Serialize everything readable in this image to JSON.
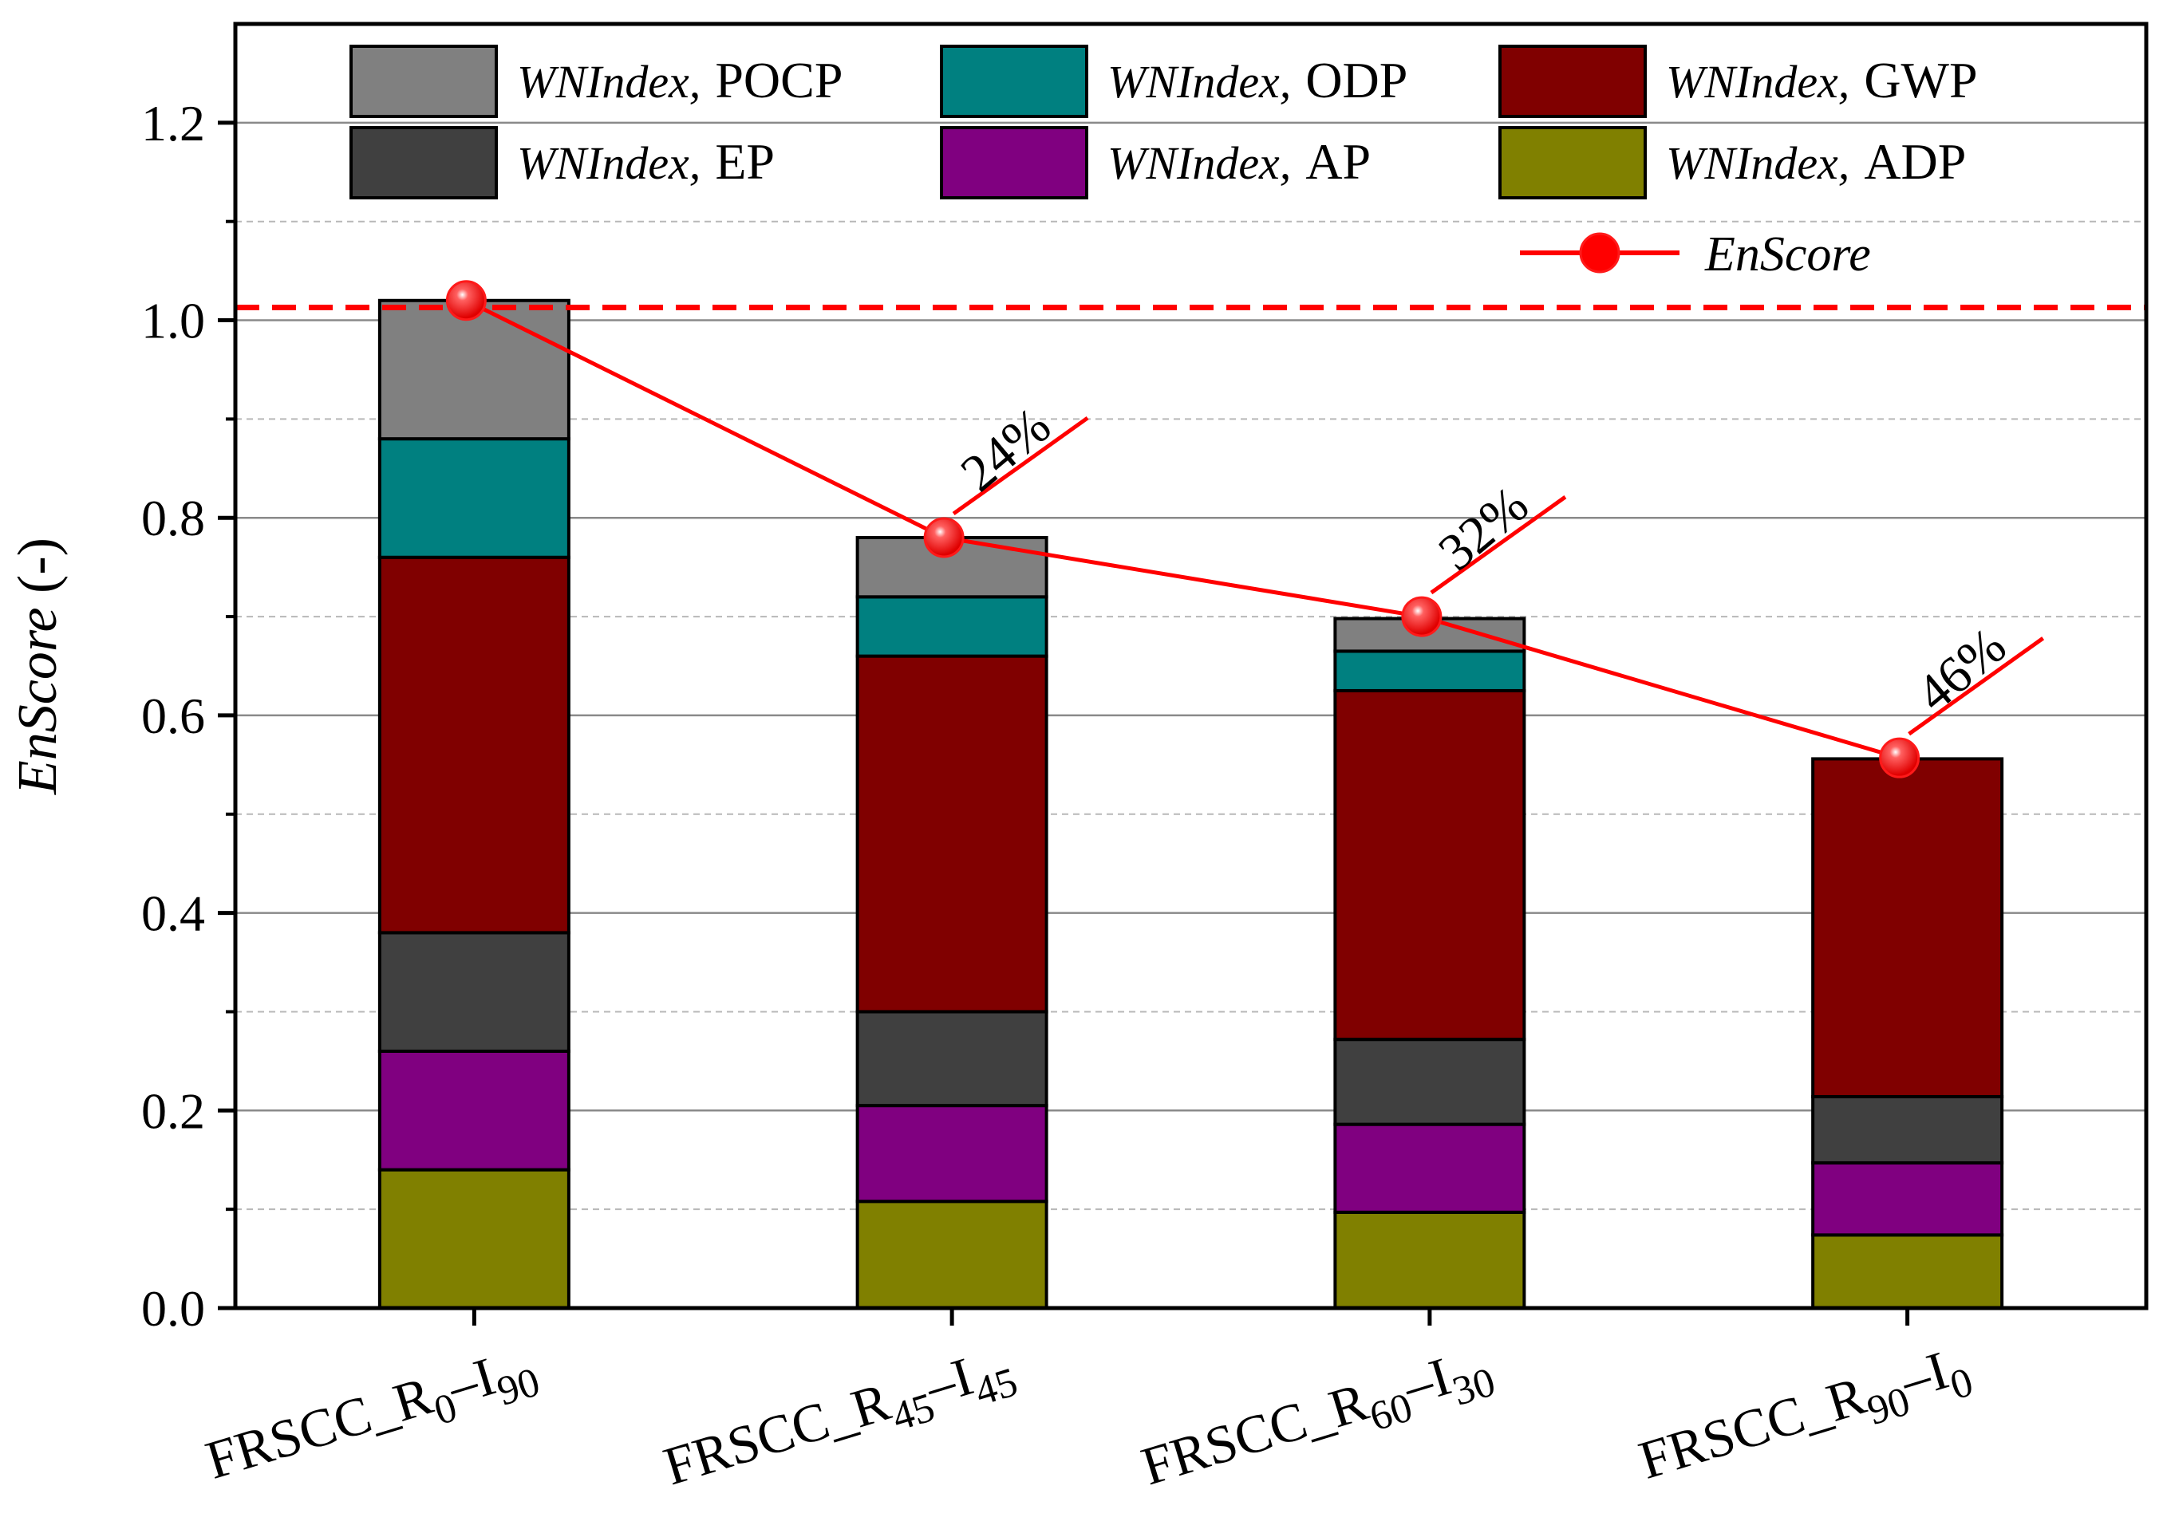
{
  "chart_data": {
    "type": "bar",
    "stacked": true,
    "categories": [
      {
        "base": "FRSCC_R",
        "s1": "0",
        "mid": "–I",
        "s2": "90"
      },
      {
        "base": "FRSCC_R",
        "s1": "45",
        "mid": "–I",
        "s2": "45"
      },
      {
        "base": "FRSCC_R",
        "s1": "60",
        "mid": "–I",
        "s2": "30"
      },
      {
        "base": "FRSCC_R",
        "s1": "90",
        "mid": "–I",
        "s2": "0"
      }
    ],
    "series": [
      {
        "name": "ADP",
        "prefix": "WNIndex,",
        "color": "#808000",
        "values": [
          0.14,
          0.108,
          0.097,
          0.074
        ]
      },
      {
        "name": "AP",
        "prefix": "WNIndex,",
        "color": "#800080",
        "values": [
          0.12,
          0.097,
          0.089,
          0.073
        ]
      },
      {
        "name": "EP",
        "prefix": "WNIndex,",
        "color": "#404040",
        "values": [
          0.12,
          0.095,
          0.086,
          0.067
        ]
      },
      {
        "name": "GWP",
        "prefix": "WNIndex,",
        "color": "#800000",
        "values": [
          0.38,
          0.36,
          0.353,
          0.342
        ]
      },
      {
        "name": "ODP",
        "prefix": "WNIndex,",
        "color": "#008080",
        "values": [
          0.12,
          0.06,
          0.04,
          0.0
        ]
      },
      {
        "name": "POCP",
        "prefix": "WNIndex,",
        "color": "#808080",
        "values": [
          0.14,
          0.06,
          0.033,
          0.0
        ]
      }
    ],
    "line": {
      "name": "EnScore",
      "color": "#ff0000",
      "values": [
        1.02,
        0.78,
        0.7,
        0.557
      ]
    },
    "annotations": [
      "",
      "24%",
      "32%",
      "46%"
    ],
    "reference_line": {
      "value": 1.013,
      "style": "dashed",
      "color": "#ff0000"
    },
    "ylabel": "EnScore",
    "ylabel_unit": "(-)",
    "ylim": [
      0,
      1.3
    ],
    "yticks": [
      "0.0",
      "0.2",
      "0.4",
      "0.6",
      "0.8",
      "1.0",
      "1.2"
    ],
    "ytick_values": [
      0,
      0.2,
      0.4,
      0.6,
      0.8,
      1.0,
      1.2
    ],
    "legend_order": [
      "POCP",
      "ODP",
      "GWP",
      "EP",
      "AP",
      "ADP"
    ],
    "legend_position": "top"
  }
}
